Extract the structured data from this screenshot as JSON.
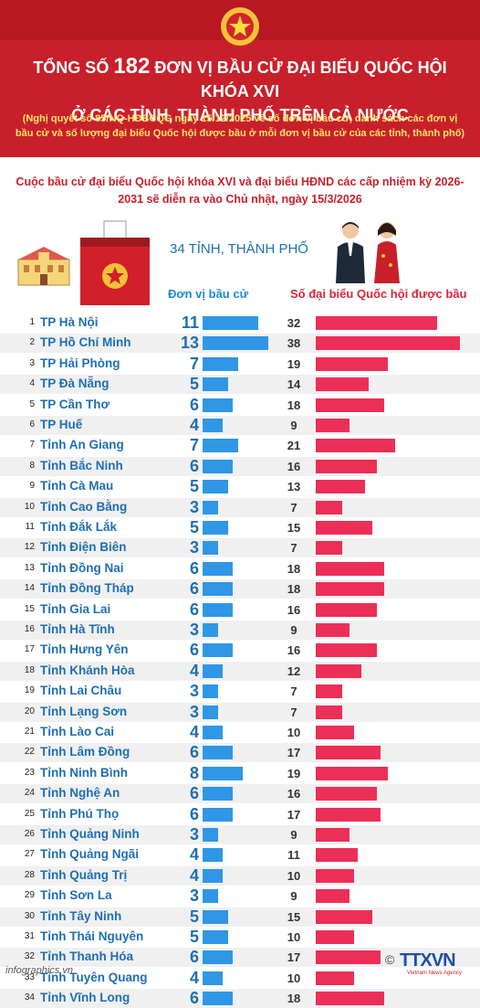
{
  "header": {
    "title_prefix": "TỔNG SỐ ",
    "title_number": "182",
    "title_suffix": " ĐƠN VỊ BẦU CỬ ĐẠI BIỂU QUỐC HỘI KHÓA XVI",
    "title_line2": "Ở CÁC TỈNH, THÀNH PHỐ TRÊN CẢ NƯỚC",
    "subtitle": "(Nghị quyết số 85/NQ-HĐBCQG ngày 15/12/2025 về số đơn vị bầu cử, danh sách các đơn vị bầu cử và số lượng đại biểu Quốc hội được bầu ở mỗi đơn vị bầu cử của các tỉnh, thành phố)"
  },
  "event_note": "Cuộc bầu cử đại biểu Quốc hội khóa XVI và đại biểu HĐND các cấp nhiệm kỳ 2026-2031 sẽ diễn ra vào Chủ nhật, ngày 15/3/2026",
  "province_count": "34 TỈNH, THÀNH PHỐ",
  "chart_data": {
    "type": "bar",
    "columns": [
      "Đơn vị bầu cử",
      "Số đại biểu Quốc hội được bầu"
    ],
    "categories": [
      "TP Hà Nội",
      "TP Hồ Chí Minh",
      "TP Hải Phòng",
      "TP Đà Nẵng",
      "TP Cần Thơ",
      "TP Huế",
      "Tỉnh An Giang",
      "Tỉnh Bắc Ninh",
      "Tỉnh Cà Mau",
      "Tỉnh Cao Bằng",
      "Tỉnh Đắk Lắk",
      "Tỉnh Điện Biên",
      "Tỉnh Đồng Nai",
      "Tỉnh Đồng Tháp",
      "Tỉnh Gia Lai",
      "Tỉnh Hà Tĩnh",
      "Tỉnh Hưng Yên",
      "Tỉnh Khánh Hòa",
      "Tỉnh Lai Châu",
      "Tỉnh Lạng Sơn",
      "Tỉnh Lào Cai",
      "Tỉnh Lâm Đồng",
      "Tỉnh Ninh Bình",
      "Tỉnh Nghệ An",
      "Tỉnh Phú Thọ",
      "Tỉnh Quảng Ninh",
      "Tỉnh Quảng Ngãi",
      "Tỉnh Quảng Trị",
      "Tỉnh Sơn La",
      "Tỉnh Tây Ninh",
      "Tỉnh Thái Nguyên",
      "Tỉnh Thanh Hóa",
      "Tỉnh Tuyên Quang",
      "Tỉnh Vĩnh Long"
    ],
    "series": [
      {
        "name": "Đơn vị bầu cử",
        "color": "#2f97e6",
        "values": [
          11,
          13,
          7,
          5,
          6,
          4,
          7,
          6,
          5,
          3,
          5,
          3,
          6,
          6,
          6,
          3,
          6,
          4,
          3,
          3,
          4,
          6,
          8,
          6,
          6,
          3,
          4,
          4,
          3,
          5,
          5,
          6,
          4,
          6
        ]
      },
      {
        "name": "Số đại biểu Quốc hội được bầu",
        "color": "#ec2f57",
        "values": [
          32,
          38,
          19,
          14,
          18,
          9,
          21,
          16,
          13,
          7,
          15,
          7,
          18,
          18,
          16,
          9,
          16,
          12,
          7,
          7,
          10,
          17,
          19,
          16,
          17,
          9,
          11,
          10,
          9,
          15,
          10,
          17,
          10,
          18
        ]
      }
    ]
  },
  "footer": {
    "source": "infographics.vn",
    "copyright": "©",
    "agency": "TTXVN",
    "agency_sub": "Vietnam News Agency"
  }
}
